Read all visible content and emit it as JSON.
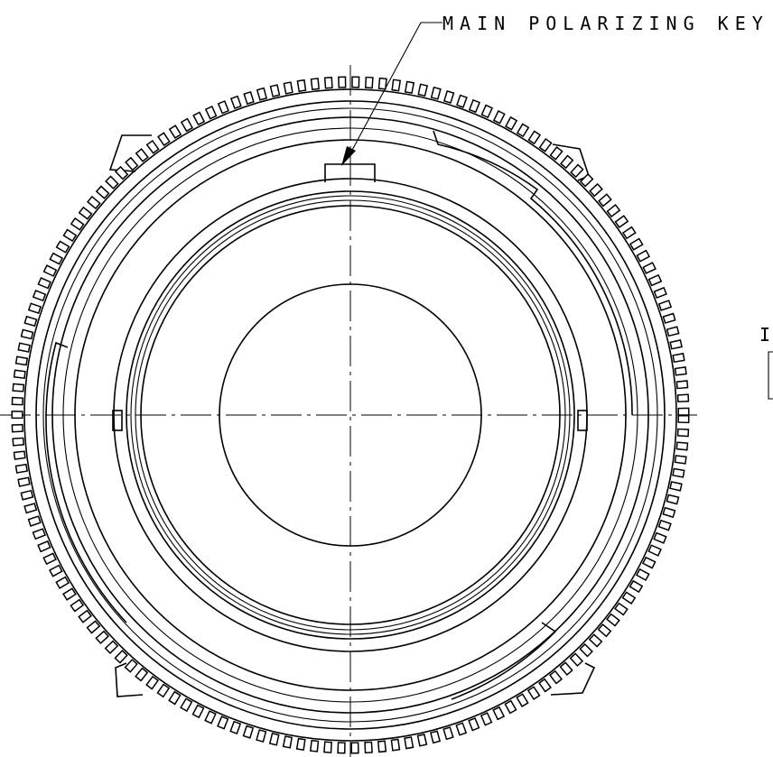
{
  "callout": {
    "label": "MAIN POLARIZING KEY"
  },
  "side_note": {
    "label": "I"
  }
}
